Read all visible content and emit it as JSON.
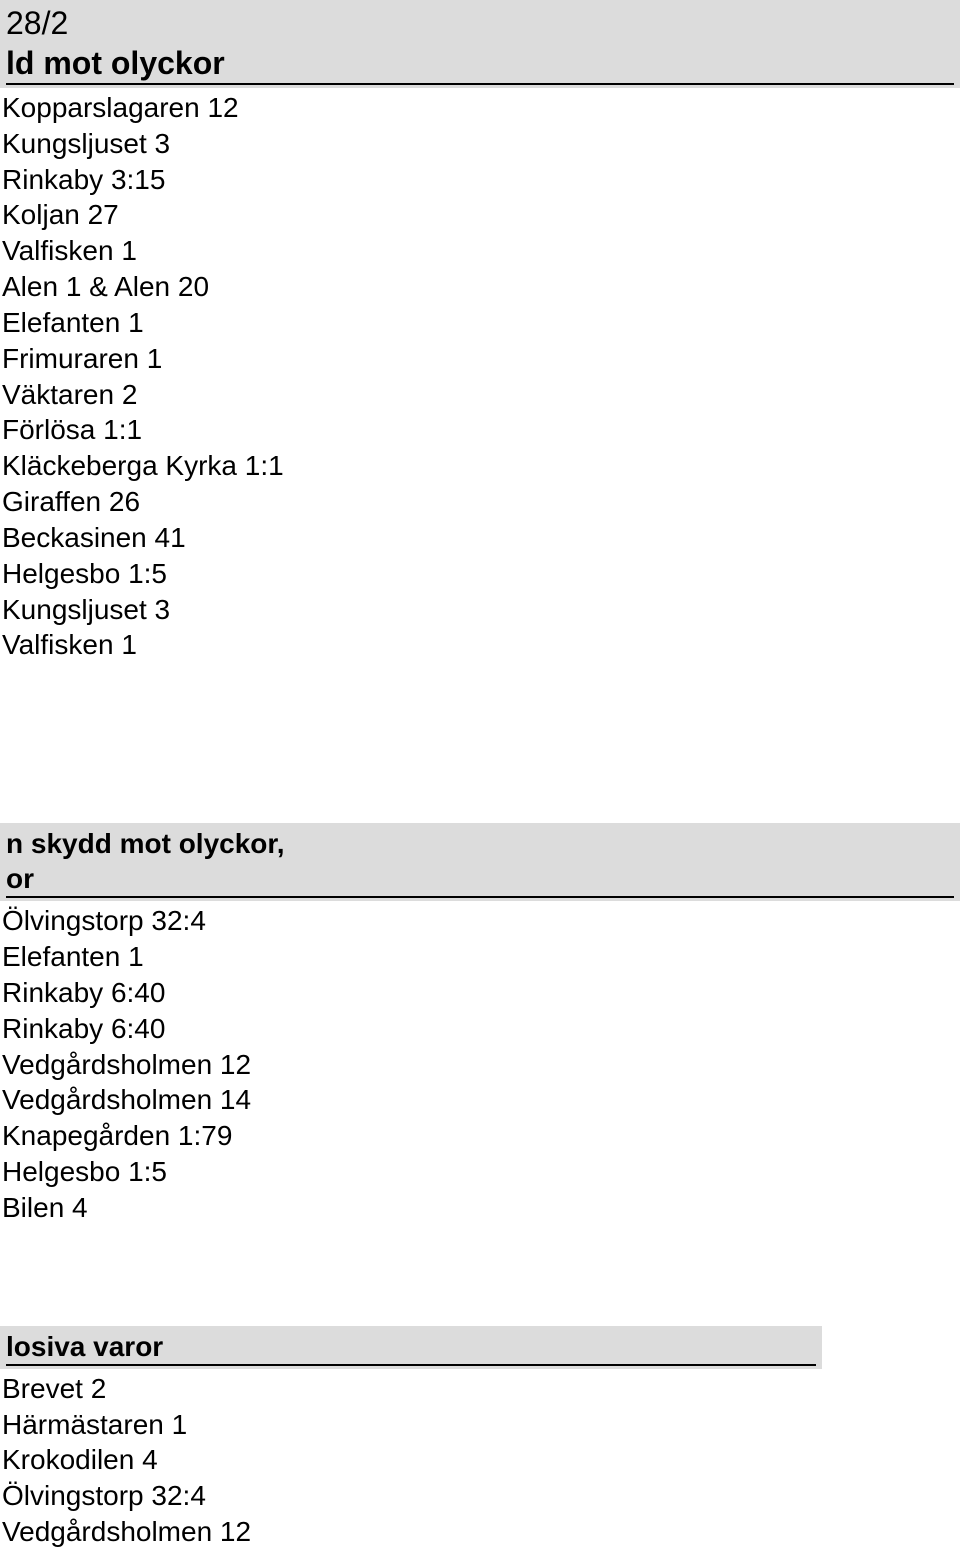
{
  "header1": {
    "line1": "28/2",
    "line2": "ld mot olyckor"
  },
  "list1": [
    "Kopparslagaren 12",
    "Kungsljuset 3",
    "Rinkaby 3:15",
    "Koljan 27",
    "Valfisken 1",
    "Alen 1 & Alen 20",
    "Elefanten 1",
    "Frimuraren 1",
    "Väktaren 2",
    "Förlösa 1:1",
    "Kläckeberga Kyrka 1:1",
    "Giraffen 26",
    "Beckasinen 41",
    "Helgesbo 1:5",
    "Kungsljuset 3",
    "Valfisken 1"
  ],
  "header2": {
    "line1": "n skydd mot olyckor,",
    "line2": "or"
  },
  "list2": [
    "Ölvingstorp 32:4",
    "Elefanten 1",
    "Rinkaby 6:40",
    "Rinkaby 6:40",
    "Vedgårdsholmen 12",
    "Vedgårdsholmen 14",
    "Knapegården 1:79",
    "Helgesbo 1:5",
    "Bilen 4"
  ],
  "header3": "losiva varor",
  "list3": [
    "Brevet 2",
    "Härmästaren 1",
    "Krokodilen 4",
    "Ölvingstorp 32:4",
    "Vedgårdsholmen 12"
  ]
}
